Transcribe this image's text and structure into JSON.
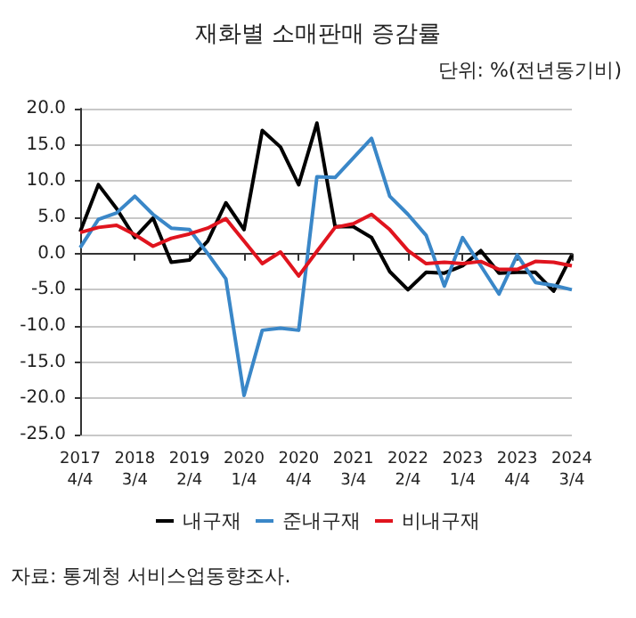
{
  "chart_data": {
    "type": "line",
    "title": "재화별 소매판매 증감률",
    "subtitle": "단위: %(전년동기비)",
    "categories": [
      "2017\n4/4",
      null,
      null,
      "2018\n3/4",
      null,
      null,
      "2019\n2/4",
      null,
      null,
      "2020\n1/4",
      null,
      null,
      "2020\n4/4",
      null,
      null,
      "2021\n3/4",
      null,
      null,
      "2022\n2/4",
      null,
      null,
      "2023\n1/4",
      null,
      null,
      "2023\n4/4",
      null,
      null,
      "2024\n3/4"
    ],
    "series": [
      {
        "name": "내구재",
        "color": "#000000",
        "values": [
          3.0,
          9.5,
          6.2,
          2.2,
          4.9,
          -1.2,
          -0.9,
          1.7,
          7.0,
          3.3,
          17.0,
          14.7,
          9.5,
          18.0,
          3.7,
          3.7,
          2.2,
          -2.5,
          -5.0,
          -2.6,
          -2.7,
          -1.7,
          0.4,
          -2.7,
          -2.6,
          -2.6,
          -5.2,
          -0.2
        ]
      },
      {
        "name": "준내구재",
        "color": "#3a87c8",
        "values": [
          0.8,
          4.7,
          5.6,
          7.9,
          5.4,
          3.5,
          3.3,
          0.0,
          -3.5,
          -19.6,
          -10.6,
          -10.3,
          -10.6,
          10.6,
          10.5,
          13.2,
          15.9,
          7.9,
          5.4,
          2.5,
          -4.5,
          2.2,
          -1.7,
          -5.6,
          -0.2,
          -4.0,
          -4.4,
          -5.0
        ]
      },
      {
        "name": "비내구재",
        "color": "#e0141e",
        "values": [
          2.9,
          3.6,
          3.9,
          2.6,
          1.0,
          2.1,
          2.7,
          3.5,
          4.8,
          1.7,
          -1.4,
          0.2,
          -3.1,
          0.3,
          3.6,
          4.1,
          5.4,
          3.3,
          0.4,
          -1.4,
          -1.2,
          -1.4,
          -1.1,
          -2.2,
          -2.2,
          -1.1,
          -1.2,
          -1.7
        ]
      }
    ],
    "ylim": [
      -25,
      20
    ],
    "yticks": [
      {
        "value": -25,
        "label": "-25.0"
      },
      {
        "value": -20,
        "label": "-20.0"
      },
      {
        "value": -15,
        "label": "-15.0"
      },
      {
        "value": -10,
        "label": "-10.0"
      },
      {
        "value": -5,
        "label": "-5.0"
      },
      {
        "value": 0,
        "label": "0.0"
      },
      {
        "value": 5,
        "label": "5.0"
      },
      {
        "value": 10,
        "label": "10.0"
      },
      {
        "value": 15,
        "label": "15.0"
      },
      {
        "value": 20,
        "label": "20.0"
      }
    ],
    "grid": "y",
    "legend": "bottom",
    "marker": "none",
    "line_style": "solid",
    "annotations": [
      "자료: 통계청 서비스업동향조사."
    ]
  }
}
